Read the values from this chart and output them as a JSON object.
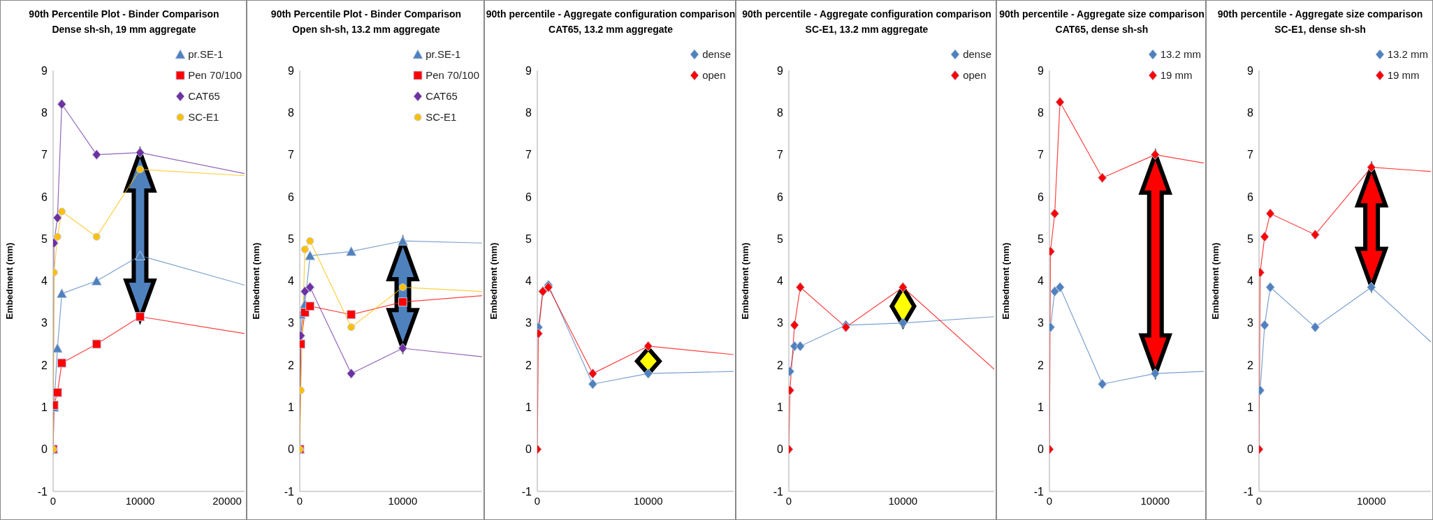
{
  "chart_data": [
    {
      "type": "line",
      "title": "90th Percentile Plot -  Binder Comparison",
      "subtitle": "Dense sh-sh,  19 mm aggregate",
      "ylabel": "Embedment (mm)",
      "xlim": [
        0,
        22000
      ],
      "xticks": [
        0,
        10000,
        20000
      ],
      "ylim": [
        -1,
        9
      ],
      "yticks": [
        -1,
        0,
        1,
        2,
        3,
        4,
        5,
        6,
        7,
        8,
        9
      ],
      "grid": false,
      "legend": "top right",
      "line_style": "solid",
      "series": [
        {
          "name": "pr.SE-1",
          "color": "#4f81bd",
          "marker": "triangle",
          "x": [
            0,
            100,
            500,
            1000,
            5000,
            10000,
            22000
          ],
          "values": [
            0,
            1.0,
            2.4,
            3.7,
            4.0,
            4.6,
            3.9
          ]
        },
        {
          "name": "Pen 70/100",
          "color": "#ff0000",
          "marker": "square",
          "x": [
            0,
            100,
            500,
            1000,
            5000,
            10000,
            22000
          ],
          "values": [
            0,
            1.05,
            1.35,
            2.05,
            2.5,
            3.15,
            2.75
          ]
        },
        {
          "name": "CAT65",
          "color": "#7030a0",
          "marker": "diamond",
          "x": [
            0,
            100,
            500,
            1000,
            5000,
            10000,
            22000
          ],
          "values": [
            0,
            4.9,
            5.5,
            8.2,
            7.0,
            7.05,
            6.55
          ]
        },
        {
          "name": "SC-E1",
          "color": "#ffc000",
          "marker": "circle",
          "x": [
            0,
            100,
            500,
            1000,
            5000,
            10000,
            22000
          ],
          "values": [
            0,
            4.2,
            5.05,
            5.65,
            5.05,
            6.65,
            6.5
          ]
        }
      ]
    },
    {
      "type": "line",
      "title": "90th Percentile Plot -  Binder Comparison",
      "subtitle": "Open sh-sh, 13.2 mm aggregate",
      "ylabel": "Embedment (mm)",
      "xlim": [
        0,
        17700
      ],
      "xticks": [
        0,
        10000
      ],
      "ylim": [
        -1,
        9
      ],
      "yticks": [
        -1,
        0,
        1,
        2,
        3,
        4,
        5,
        6,
        7,
        8,
        9
      ],
      "grid": false,
      "legend": "top right",
      "line_style": "solid",
      "series": [
        {
          "name": "pr.SE-1",
          "color": "#4f81bd",
          "marker": "triangle",
          "x": [
            0,
            100,
            500,
            1000,
            5000,
            10000,
            17700
          ],
          "values": [
            0,
            3.2,
            3.45,
            4.6,
            4.7,
            4.95,
            4.9
          ]
        },
        {
          "name": "Pen 70/100",
          "color": "#ff0000",
          "marker": "square",
          "x": [
            0,
            100,
            500,
            1000,
            5000,
            10000,
            17700
          ],
          "values": [
            0,
            2.5,
            3.25,
            3.4,
            3.2,
            3.5,
            3.65
          ]
        },
        {
          "name": "CAT65",
          "color": "#7030a0",
          "marker": "diamond",
          "x": [
            0,
            100,
            500,
            1000,
            5000,
            10000,
            17700
          ],
          "values": [
            0,
            2.7,
            3.75,
            3.85,
            1.8,
            2.4,
            2.2
          ]
        },
        {
          "name": "SC-E1",
          "color": "#ffc000",
          "marker": "circle",
          "x": [
            0,
            100,
            500,
            1000,
            5000,
            10000,
            17700
          ],
          "values": [
            0,
            1.4,
            4.75,
            4.95,
            2.9,
            3.85,
            3.75
          ]
        }
      ]
    },
    {
      "type": "line",
      "title": "90th percentile - Aggregate configuration  comparison",
      "subtitle": "CAT65, 13.2 mm aggregate",
      "ylabel": "Embedment (mm)",
      "xlim": [
        0,
        17700
      ],
      "xticks": [
        0,
        10000
      ],
      "ylim": [
        -1,
        9
      ],
      "yticks": [
        -1,
        0,
        1,
        2,
        3,
        4,
        5,
        6,
        7,
        8,
        9
      ],
      "grid": false,
      "legend": "top right",
      "line_style": "solid",
      "series": [
        {
          "name": "dense",
          "color": "#4f81bd",
          "marker": "diamond",
          "x": [
            100,
            500,
            1000,
            5000,
            10000,
            17700
          ],
          "values": [
            2.9,
            3.75,
            3.9,
            1.55,
            1.8,
            1.85
          ]
        },
        {
          "name": "open",
          "color": "#ff0000",
          "marker": "diamond",
          "x": [
            0,
            100,
            500,
            1000,
            5000,
            10000,
            17700
          ],
          "values": [
            0,
            2.75,
            3.75,
            3.85,
            1.8,
            2.45,
            2.25
          ]
        }
      ]
    },
    {
      "type": "line",
      "title": "90th percentile - Aggregate configuration  comparison",
      "subtitle": "SC-E1, 13.2 mm aggregate",
      "ylabel": "Embedment (mm)",
      "xlim": [
        0,
        18000
      ],
      "xticks": [
        0,
        10000
      ],
      "ylim": [
        -1,
        9
      ],
      "yticks": [
        -1,
        0,
        1,
        2,
        3,
        4,
        5,
        6,
        7,
        8,
        9
      ],
      "grid": false,
      "legend": "top right",
      "line_style": "solid",
      "series": [
        {
          "name": "dense",
          "color": "#4f81bd",
          "marker": "diamond",
          "x": [
            100,
            500,
            1000,
            5000,
            10000,
            18000
          ],
          "values": [
            1.85,
            2.45,
            2.45,
            2.95,
            3.0,
            3.15
          ]
        },
        {
          "name": "open",
          "color": "#ff0000",
          "marker": "diamond",
          "x": [
            0,
            100,
            500,
            1000,
            5000,
            10000,
            18000
          ],
          "values": [
            0,
            1.4,
            2.95,
            3.85,
            2.9,
            3.85,
            1.9
          ]
        }
      ]
    },
    {
      "type": "line",
      "title": "90th percentile - Aggregate size comparison",
      "subtitle": "CAT65, dense sh-sh",
      "ylabel": "Embedment (mm)",
      "xlim": [
        0,
        14600
      ],
      "xticks": [
        0,
        10000
      ],
      "ylim": [
        -1,
        9
      ],
      "yticks": [
        -1,
        0,
        1,
        2,
        3,
        4,
        5,
        6,
        7,
        8,
        9
      ],
      "grid": false,
      "legend": "top right",
      "line_style": "solid",
      "series": [
        {
          "name": "13.2 mm",
          "color": "#4f81bd",
          "marker": "diamond",
          "x": [
            100,
            500,
            1000,
            5000,
            10000,
            14600
          ],
          "values": [
            2.9,
            3.75,
            3.85,
            1.55,
            1.8,
            1.85
          ]
        },
        {
          "name": "19 mm",
          "color": "#ff0000",
          "marker": "diamond",
          "x": [
            0,
            100,
            500,
            1000,
            5000,
            10000,
            14600
          ],
          "values": [
            0,
            4.7,
            5.6,
            8.25,
            6.45,
            7.0,
            6.8
          ]
        }
      ]
    },
    {
      "type": "line",
      "title": "90th percentile - Aggregate size comparison",
      "subtitle": "SC-E1, dense sh-sh",
      "ylabel": "Embedment (mm)",
      "xlim": [
        0,
        15300
      ],
      "xticks": [
        0,
        10000
      ],
      "ylim": [
        -1,
        9
      ],
      "yticks": [
        -1,
        0,
        1,
        2,
        3,
        4,
        5,
        6,
        7,
        8,
        9
      ],
      "grid": false,
      "legend": "top right",
      "line_style": "solid",
      "series": [
        {
          "name": "13.2 mm",
          "color": "#4f81bd",
          "marker": "diamond",
          "x": [
            100,
            500,
            1000,
            5000,
            10000,
            15300
          ],
          "values": [
            1.4,
            2.95,
            3.85,
            2.9,
            3.85,
            2.55
          ]
        },
        {
          "name": "19 mm",
          "color": "#ff0000",
          "marker": "diamond",
          "x": [
            0,
            100,
            500,
            1000,
            5000,
            10000,
            15300
          ],
          "values": [
            0,
            4.2,
            5.05,
            5.6,
            5.1,
            6.7,
            6.6
          ]
        }
      ]
    }
  ]
}
